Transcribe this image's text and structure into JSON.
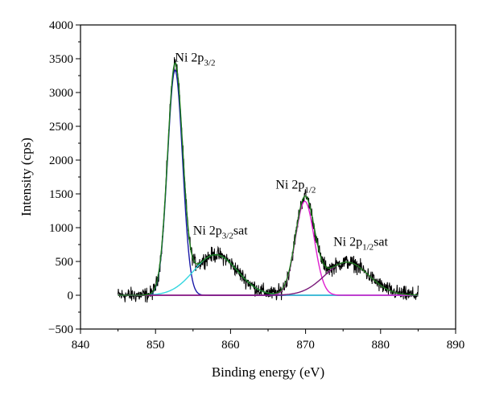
{
  "chart_data": {
    "type": "line",
    "xlabel": "Binding energy (eV)",
    "ylabel": "Intensity (cps)",
    "xlim": [
      840,
      890
    ],
    "ylim": [
      -500,
      4000
    ],
    "xticks": [
      840,
      850,
      860,
      870,
      880,
      890
    ],
    "xtick_labels": [
      "840",
      "850",
      "860",
      "870",
      "880",
      "890"
    ],
    "yticks": [
      -500,
      0,
      500,
      1000,
      1500,
      2000,
      2500,
      3000,
      3500,
      4000
    ],
    "ytick_labels": [
      "−500",
      "0",
      "500",
      "1000",
      "1500",
      "2000",
      "2500",
      "3000",
      "3500",
      "4000"
    ],
    "grid": false,
    "colors": {
      "raw": "#000000",
      "envelope": "#1a7a1a",
      "ni2p32": "#1a1aa8",
      "ni2p32_sat": "#33d6e0",
      "ni2p12": "#e020d0",
      "ni2p12_sat": "#7a1a7a",
      "baseline": "#7a1a7a"
    },
    "peaks": [
      {
        "id": "ni2p32",
        "center": 852.6,
        "height": 3330,
        "sigma": 1.0
      },
      {
        "id": "ni2p32_sat",
        "center": 858.0,
        "height": 600,
        "sigma": 2.9
      },
      {
        "id": "ni2p12",
        "center": 869.9,
        "height": 1390,
        "sigma": 1.25
      },
      {
        "id": "ni2p12_sat",
        "center": 875.5,
        "height": 490,
        "sigma": 2.9
      }
    ],
    "x_range": [
      845,
      885
    ],
    "noise_amplitude": 70,
    "annotations": [
      {
        "id": "ni2p32",
        "main": "Ni 2p",
        "sub": "3/2",
        "suffix": "",
        "x": 852.6,
        "y": 3460
      },
      {
        "id": "ni2p32_sat",
        "main": "Ni 2p",
        "sub": "3/2",
        "suffix": "sat",
        "x": 855.0,
        "y": 900
      },
      {
        "id": "ni2p12",
        "main": "Ni 2p",
        "sub": "1/2",
        "suffix": "",
        "x": 866.0,
        "y": 1580
      },
      {
        "id": "ni2p12_sat",
        "main": "Ni 2p",
        "sub": "1/2",
        "suffix": "sat",
        "x": 873.7,
        "y": 730
      }
    ]
  }
}
